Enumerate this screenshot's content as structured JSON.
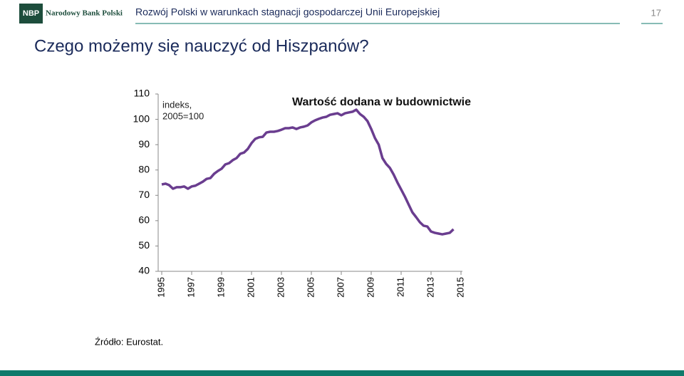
{
  "header": {
    "logo": "NBP",
    "bank_name": "Narodowy Bank Polski",
    "title": "Rozwój Polski w warunkach stagnacji gospodarczej Unii Europejskiej",
    "page_number": "17"
  },
  "slide_title": "Czego możemy się nauczyć od Hiszpanów?",
  "source": "Źródło: Eurostat.",
  "chart_data": {
    "type": "line",
    "title": "Wartość dodana w budownictwie",
    "annotation": [
      "indeks,",
      "2005=100"
    ],
    "x": [
      1995,
      1995.25,
      1995.5,
      1995.75,
      1996,
      1996.25,
      1996.5,
      1996.75,
      1997,
      1997.25,
      1997.5,
      1997.75,
      1998,
      1998.25,
      1998.5,
      1998.75,
      1999,
      1999.25,
      1999.5,
      1999.75,
      2000,
      2000.25,
      2000.5,
      2000.75,
      2001,
      2001.25,
      2001.5,
      2001.75,
      2002,
      2002.25,
      2002.5,
      2002.75,
      2003,
      2003.25,
      2003.5,
      2003.75,
      2004,
      2004.25,
      2004.5,
      2004.75,
      2005,
      2005.25,
      2005.5,
      2005.75,
      2006,
      2006.25,
      2006.5,
      2006.75,
      2007,
      2007.25,
      2007.5,
      2007.75,
      2008,
      2008.25,
      2008.5,
      2008.75,
      2009,
      2009.25,
      2009.5,
      2009.75,
      2010,
      2010.25,
      2010.5,
      2010.75,
      2011,
      2011.25,
      2011.5,
      2011.75,
      2012,
      2012.25,
      2012.5,
      2012.75,
      2013,
      2013.25,
      2013.5,
      2013.75,
      2014,
      2014.25,
      2014.5
    ],
    "values": [
      74.3,
      74.6,
      74.0,
      72.6,
      73.2,
      73.2,
      73.5,
      72.6,
      73.5,
      73.8,
      74.6,
      75.4,
      76.5,
      76.8,
      78.5,
      79.6,
      80.5,
      82.2,
      82.7,
      83.9,
      84.7,
      86.4,
      86.9,
      88.3,
      90.6,
      92.3,
      92.9,
      93.1,
      94.8,
      95.1,
      95.1,
      95.4,
      95.9,
      96.5,
      96.5,
      96.8,
      96.2,
      96.8,
      97.1,
      97.6,
      98.8,
      99.6,
      100.2,
      100.7,
      101.0,
      101.8,
      102.1,
      102.4,
      101.6,
      102.4,
      102.7,
      103.0,
      103.8,
      102.1,
      101.0,
      99.3,
      96.2,
      92.6,
      90.0,
      84.7,
      82.4,
      80.8,
      78.2,
      75.1,
      72.3,
      69.5,
      66.4,
      63.3,
      61.4,
      59.4,
      58.0,
      57.7,
      55.7,
      55.2,
      54.9,
      54.6,
      54.9,
      55.2,
      56.6
    ],
    "color": "#6a3d8f",
    "xlim": [
      1995,
      2015
    ],
    "xticks": [
      1995,
      1997,
      1999,
      2001,
      2003,
      2005,
      2007,
      2009,
      2011,
      2013,
      2015
    ],
    "ylim": [
      40,
      110
    ],
    "yticks": [
      40,
      50,
      60,
      70,
      80,
      90,
      100,
      110
    ]
  }
}
